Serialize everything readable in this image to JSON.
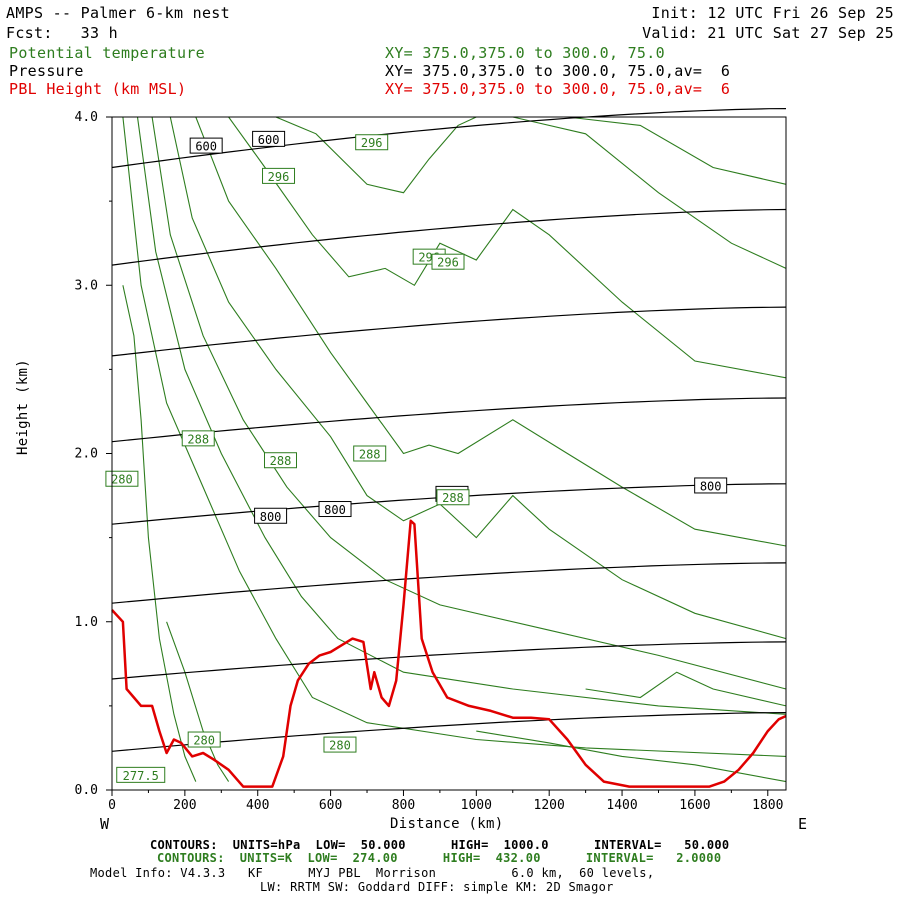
{
  "header": {
    "model": "AMPS -- Palmer 6-km nest",
    "init": "Init: 12 UTC Fri 26 Sep 25",
    "fcst": "Fcst:   33 h",
    "valid": "Valid: 21 UTC Sat 27 Sep 25",
    "fields": [
      {
        "name": "Potential temperature",
        "spec": "XY= 375.0,375.0 to 300.0, 75.0",
        "color": "#2e7d1f"
      },
      {
        "name": "Pressure",
        "spec": "XY= 375.0,375.0 to 300.0, 75.0,av=  6",
        "color": "#000000"
      },
      {
        "name": "PBL Height (km MSL)",
        "spec": "XY= 375.0,375.0 to 300.0, 75.0,av=  6",
        "color": "#e00000"
      }
    ]
  },
  "axes": {
    "xlabel": "Distance (km)",
    "ylabel": "Height (km)",
    "x_ticks": [
      "0",
      "200",
      "400",
      "600",
      "800",
      "1000",
      "1200",
      "1400",
      "1600",
      "1800"
    ],
    "y_ticks": [
      "0.0",
      "1.0",
      "2.0",
      "3.0",
      "4.0"
    ],
    "left_end": "W",
    "right_end": "E"
  },
  "footer": {
    "line1": "CONTOURS:  UNITS=hPa  LOW=  50.000      HIGH=  1000.0      INTERVAL=   50.000",
    "line2": "CONTOURS:  UNITS=K  LOW=  274.00      HIGH=  432.00      INTERVAL=   2.0000",
    "line3": "Model Info: V4.3.3   KF      MYJ PBL  Morrison          6.0 km,  60 levels,",
    "line4": "LW: RRTM SW: Goddard DIFF: simple KM: 2D Smagor"
  },
  "chart_data": {
    "type": "line",
    "xlim": [
      0,
      1850
    ],
    "ylim": [
      0,
      4.0
    ],
    "grid": false,
    "series": [
      {
        "name": "PBL Height (km MSL)",
        "color": "#e00000",
        "x": [
          0,
          30,
          40,
          60,
          80,
          110,
          130,
          150,
          170,
          190,
          220,
          250,
          280,
          320,
          360,
          400,
          440,
          470,
          490,
          510,
          540,
          570,
          600,
          630,
          660,
          690,
          710,
          720,
          740,
          760,
          780,
          800,
          820,
          830,
          850,
          880,
          920,
          980,
          1040,
          1100,
          1150,
          1200,
          1250,
          1300,
          1350,
          1420,
          1500,
          1580,
          1640,
          1680,
          1720,
          1760,
          1800,
          1830,
          1850
        ],
        "y": [
          1.07,
          1.0,
          0.6,
          0.55,
          0.5,
          0.5,
          0.35,
          0.22,
          0.3,
          0.28,
          0.2,
          0.22,
          0.18,
          0.12,
          0.02,
          0.02,
          0.02,
          0.2,
          0.5,
          0.65,
          0.75,
          0.8,
          0.82,
          0.86,
          0.9,
          0.88,
          0.6,
          0.7,
          0.55,
          0.5,
          0.65,
          1.1,
          1.6,
          1.58,
          0.9,
          0.7,
          0.55,
          0.5,
          0.47,
          0.43,
          0.43,
          0.42,
          0.3,
          0.15,
          0.05,
          0.02,
          0.02,
          0.02,
          0.02,
          0.05,
          0.12,
          0.22,
          0.35,
          0.42,
          0.44
        ]
      },
      {
        "name": "Pressure (hPa)",
        "color": "#000000",
        "contours": [
          {
            "y": [
              0.23,
              0.46
            ]
          },
          {
            "y": [
              0.66,
              0.88
            ]
          },
          {
            "y": [
              1.11,
              1.35
            ]
          },
          {
            "y": [
              1.58,
              1.82
            ]
          },
          {
            "y": [
              2.07,
              2.33
            ]
          },
          {
            "y": [
              2.58,
              2.87
            ]
          },
          {
            "y": [
              3.12,
              3.45
            ]
          },
          {
            "y": [
              3.7,
              4.05
            ]
          }
        ],
        "labels": [
          {
            "text": "600",
            "x": 950,
            "y": 3.83
          },
          {
            "text": "600",
            "x": 1580,
            "y": 3.87
          },
          {
            "text": "800",
            "x": 1600,
            "y": 1.63
          },
          {
            "text": "800",
            "x": 2250,
            "y": 1.67
          },
          {
            "text": "800",
            "x": 3430,
            "y": 1.76
          },
          {
            "text": "800",
            "x": 6040,
            "y": 1.81
          }
        ]
      },
      {
        "name": "Potential temperature (K)",
        "color": "#2e7d1f",
        "labels": [
          {
            "text": "296",
            "x": 1680,
            "y": 3.65
          },
          {
            "text": "296",
            "x": 2620,
            "y": 3.85
          },
          {
            "text": "296",
            "x": 3200,
            "y": 3.17
          },
          {
            "text": "296",
            "x": 3390,
            "y": 3.14
          },
          {
            "text": "288",
            "x": 870,
            "y": 2.09
          },
          {
            "text": "288",
            "x": 1700,
            "y": 1.96
          },
          {
            "text": "288",
            "x": 2600,
            "y": 2.0
          },
          {
            "text": "288",
            "x": 3440,
            "y": 1.74
          },
          {
            "text": "280",
            "x": 100,
            "y": 1.85
          },
          {
            "text": "280",
            "x": 930,
            "y": 0.3
          },
          {
            "text": "280",
            "x": 2300,
            "y": 0.27
          },
          {
            "text": "277.5",
            "x": 290,
            "y": 0.09
          }
        ]
      }
    ]
  }
}
